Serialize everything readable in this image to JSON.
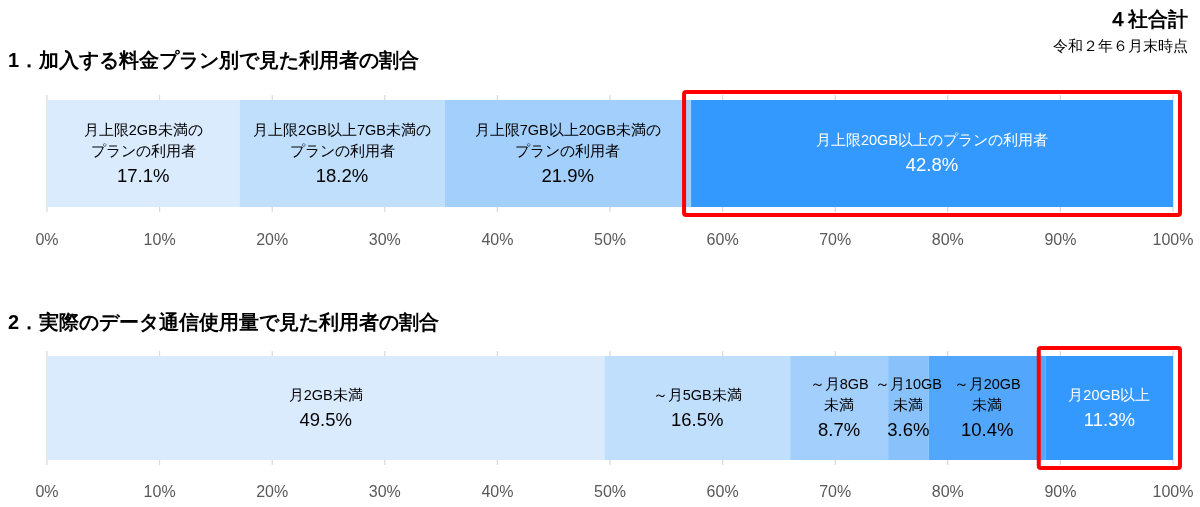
{
  "chart_data": [
    {
      "type": "bar",
      "orientation": "horizontal",
      "stacked": true,
      "title": "1．加入する料金プラン別で見た利用者の割合",
      "annotations": [
        "４社合計",
        "令和２年６月末時点"
      ],
      "categories": [
        null
      ],
      "series": [
        {
          "name": "月上限2GB未満のプランの利用者",
          "color": "#daebfe",
          "values": [
            17.1
          ],
          "value_labels": [
            "17.1%"
          ]
        },
        {
          "name": "月上限2GB以上7GB未満のプランの利用者",
          "color": "#c0dffd",
          "values": [
            18.2
          ],
          "value_labels": [
            "18.2%"
          ]
        },
        {
          "name": "月上限7GB以上20GB未満のプランの利用者",
          "color": "#a3cffc",
          "values": [
            21.9
          ],
          "value_labels": [
            "21.9%"
          ]
        },
        {
          "name": "月上限20GB以上のプランの利用者",
          "color": "#3399ff",
          "values": [
            42.8
          ],
          "value_labels": [
            "42.8%"
          ]
        }
      ],
      "xlim": [
        0,
        100
      ],
      "xticks": [
        {
          "value": 0,
          "label": "0%"
        },
        {
          "value": 10,
          "label": "10%"
        },
        {
          "value": 20,
          "label": "20%"
        },
        {
          "value": 30,
          "label": "30%"
        },
        {
          "value": 40,
          "label": "40%"
        },
        {
          "value": 50,
          "label": "50%"
        },
        {
          "value": 60,
          "label": "60%"
        },
        {
          "value": 70,
          "label": "70%"
        },
        {
          "value": 80,
          "label": "80%"
        },
        {
          "value": 90,
          "label": "90%"
        },
        {
          "value": 100,
          "label": "100%"
        }
      ],
      "grid": "x",
      "tick_labels": "x"
    },
    {
      "type": "bar",
      "orientation": "horizontal",
      "stacked": true,
      "title": "2．実際のデータ通信使用量で見た利用者の割合",
      "categories": [
        null
      ],
      "series": [
        {
          "name": "月2GB未満",
          "color": "#daebfe",
          "values": [
            49.5
          ],
          "value_labels": [
            "49.5%"
          ]
        },
        {
          "name": "～月5GB未満",
          "color": "#c0dffd",
          "values": [
            16.5
          ],
          "value_labels": [
            "16.5%"
          ]
        },
        {
          "name": "～月8GB未満",
          "color": "#a3cffc",
          "values": [
            8.7
          ],
          "value_labels": [
            "8.7%"
          ]
        },
        {
          "name": "～月10GB未満",
          "color": "#89c2fb",
          "values": [
            3.6
          ],
          "value_labels": [
            "3.6%"
          ]
        },
        {
          "name": "～月20GB未満",
          "color": "#52a6fb",
          "values": [
            10.4
          ],
          "value_labels": [
            "10.4%"
          ]
        },
        {
          "name": "月20GB以上",
          "color": "#3399ff",
          "values": [
            11.3
          ],
          "value_labels": [
            "11.3%"
          ]
        }
      ],
      "xlim": [
        0,
        100
      ],
      "xticks": [
        {
          "value": 0,
          "label": "0%"
        },
        {
          "value": 10,
          "label": "10%"
        },
        {
          "value": 20,
          "label": "20%"
        },
        {
          "value": 30,
          "label": "30%"
        },
        {
          "value": 40,
          "label": "40%"
        },
        {
          "value": 50,
          "label": "50%"
        },
        {
          "value": 60,
          "label": "60%"
        },
        {
          "value": 70,
          "label": "70%"
        },
        {
          "value": 80,
          "label": "80%"
        },
        {
          "value": 90,
          "label": "90%"
        },
        {
          "value": 100,
          "label": "100%"
        }
      ],
      "grid": "x",
      "tick_labels": "x"
    }
  ]
}
